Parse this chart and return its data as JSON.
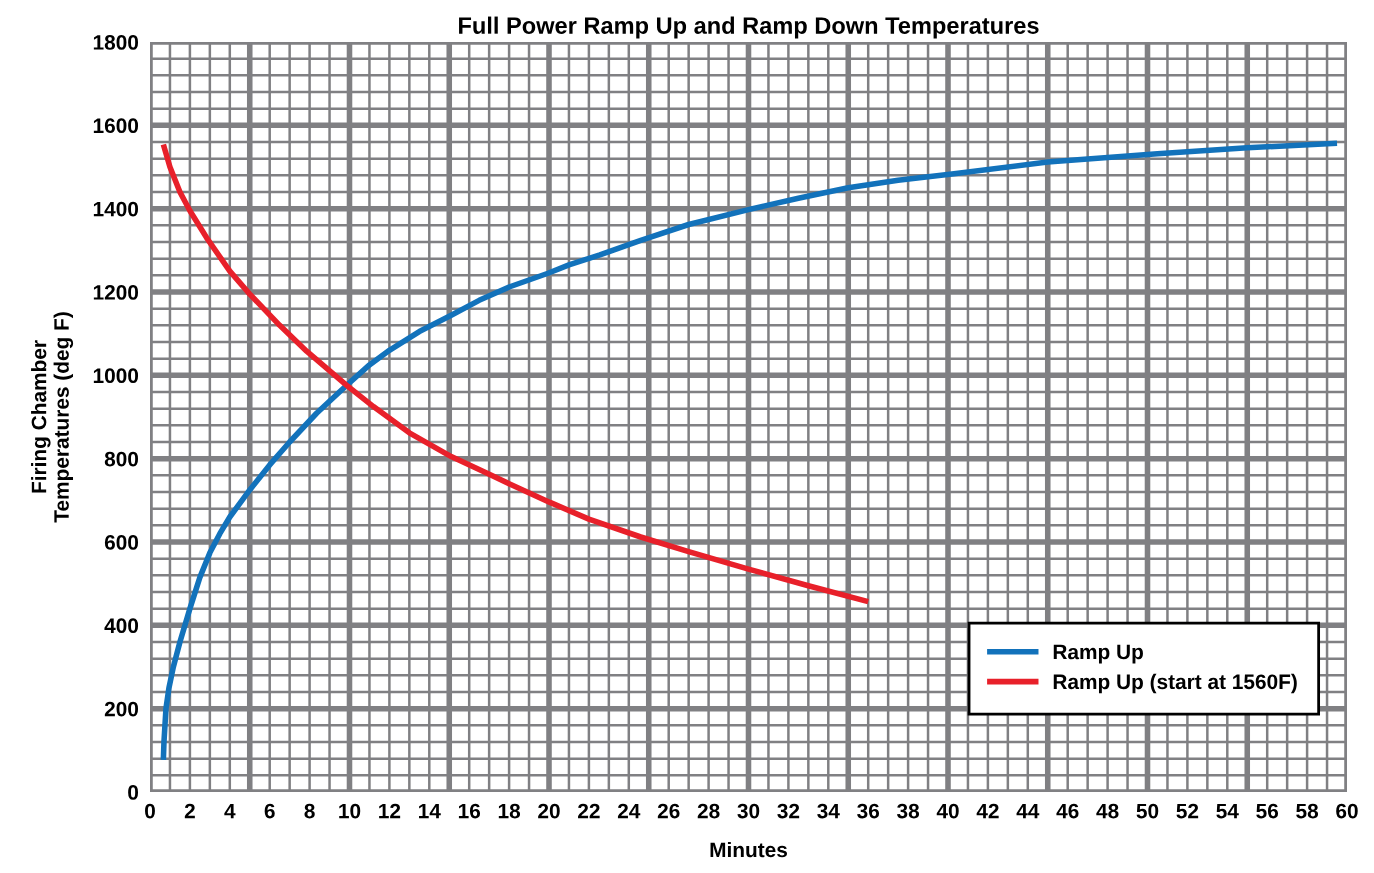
{
  "chart_data": {
    "type": "line",
    "title": "Full Power Ramp Up and Ramp Down Temperatures",
    "xlabel": "Minutes",
    "ylabel": "Firing Chamber\nTemperatures (deg F)",
    "xlim": [
      0,
      60
    ],
    "ylim": [
      0,
      1800
    ],
    "xticks": [
      0,
      2,
      4,
      6,
      8,
      10,
      12,
      14,
      16,
      18,
      20,
      22,
      24,
      26,
      28,
      30,
      32,
      34,
      36,
      38,
      40,
      42,
      44,
      46,
      48,
      50,
      52,
      54,
      56,
      58,
      60
    ],
    "yticks": [
      0,
      200,
      400,
      600,
      800,
      1000,
      1200,
      1400,
      1600,
      1800
    ],
    "grid": true,
    "legend": "bottom right",
    "marker": "none",
    "line_style": "solid",
    "series": [
      {
        "name": "Ramp Up",
        "color": "#1272bb",
        "x": [
          0.67,
          0.7,
          0.8,
          0.95,
          1.17,
          1.5,
          2,
          2.5,
          3,
          3.5,
          4,
          5,
          6,
          7,
          8.35,
          9.86,
          11,
          12,
          13.5,
          15.1,
          16.5,
          18,
          19.95,
          21,
          22.55,
          24.6,
          27,
          30.1,
          32.5,
          35,
          37.5,
          40.3,
          45,
          50.5,
          55,
          59.5
        ],
        "values": [
          77,
          120,
          200,
          250,
          300,
          360,
          440,
          515,
          574,
          620,
          660,
          725,
          785,
          840,
          909,
          976,
          1025,
          1060,
          1105,
          1144,
          1180,
          1212,
          1245,
          1265,
          1289,
          1324,
          1362,
          1399,
          1425,
          1450,
          1468,
          1484,
          1512,
          1532,
          1546,
          1557
        ]
      },
      {
        "name": "Ramp Up (start at 1560F)",
        "color": "#e8202a",
        "x": [
          0.67,
          1,
          1.5,
          2,
          2.84,
          4,
          5,
          6.5,
          7.85,
          9.86,
          11.2,
          13,
          15.1,
          16.9,
          18,
          20.05,
          22,
          24.6,
          27,
          30,
          33,
          36
        ],
        "values": [
          1554,
          1500,
          1440,
          1395,
          1330,
          1250,
          1195,
          1120,
          1058,
          976,
          925,
          862,
          805,
          765,
          740,
          695,
          655,
          612,
          577,
          535,
          495,
          457
        ]
      }
    ]
  }
}
